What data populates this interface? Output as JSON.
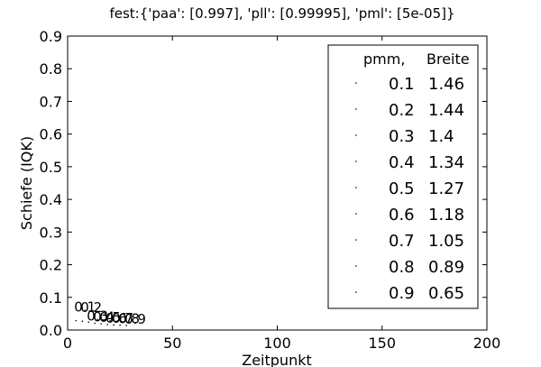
{
  "chart_data": {
    "type": "scatter",
    "title": "fest:{'paa': [0.997], 'pll': [0.99995], 'pml': [5e-05]}",
    "xlabel": "Zeitpunkt",
    "ylabel": "Schiefe (IQK)",
    "xlim": [
      0,
      200
    ],
    "ylim": [
      0.0,
      0.9
    ],
    "xticks": [
      0,
      50,
      100,
      150,
      200
    ],
    "yticks": [
      0.0,
      0.1,
      0.2,
      0.3,
      0.4,
      0.5,
      0.6,
      0.7,
      0.8,
      0.9
    ],
    "xtick_labels": [
      "0",
      "50",
      "100",
      "150",
      "200"
    ],
    "ytick_labels": [
      "0.0",
      "0.1",
      "0.2",
      "0.3",
      "0.4",
      "0.5",
      "0.6",
      "0.7",
      "0.8",
      "0.9"
    ],
    "grid": false,
    "legend": {
      "placement": "upper-right",
      "header_left": "pmm,",
      "header_right": "Breite",
      "entries": [
        {
          "pmm": "0.1",
          "breite": "1.46"
        },
        {
          "pmm": "0.2",
          "breite": "1.44"
        },
        {
          "pmm": "0.3",
          "breite": "1.4"
        },
        {
          "pmm": "0.4",
          "breite": "1.34"
        },
        {
          "pmm": "0.5",
          "breite": "1.27"
        },
        {
          "pmm": "0.6",
          "breite": "1.18"
        },
        {
          "pmm": "0.7",
          "breite": "1.05"
        },
        {
          "pmm": "0.8",
          "breite": "0.89"
        },
        {
          "pmm": "0.9",
          "breite": "0.65"
        }
      ]
    },
    "points": [
      {
        "x": 4,
        "y": 0.04,
        "label": "0.1"
      },
      {
        "x": 7,
        "y": 0.038,
        "label": "0.2"
      },
      {
        "x": 10,
        "y": 0.035,
        "label": "0.3"
      },
      {
        "x": 13,
        "y": 0.032,
        "label": "0.4"
      },
      {
        "x": 16,
        "y": 0.03,
        "label": "0.5"
      },
      {
        "x": 19,
        "y": 0.028,
        "label": "0.6"
      },
      {
        "x": 22,
        "y": 0.027,
        "label": "0.7"
      },
      {
        "x": 25,
        "y": 0.026,
        "label": "0.8"
      },
      {
        "x": 28,
        "y": 0.025,
        "label": "0.9"
      }
    ]
  }
}
